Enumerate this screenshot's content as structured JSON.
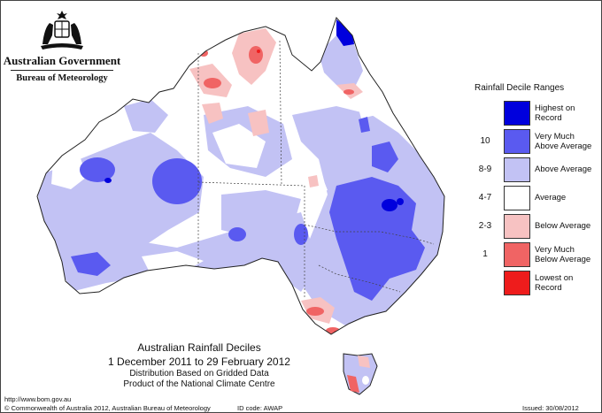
{
  "logo": {
    "government": "Australian Government",
    "bureau": "Bureau of Meteorology"
  },
  "legend": {
    "title": "Rainfall Decile Ranges",
    "items": [
      {
        "range": "",
        "line1": "Highest on",
        "line2": "Record",
        "color": "#0000dd"
      },
      {
        "range": "10",
        "line1": "Very Much",
        "line2": "Above Average",
        "color": "#5a5af0"
      },
      {
        "range": "8-9",
        "line1": "Above Average",
        "line2": "",
        "color": "#c2c2f4"
      },
      {
        "range": "4-7",
        "line1": "Average",
        "line2": "",
        "color": "#ffffff"
      },
      {
        "range": "2-3",
        "line1": "Below Average",
        "line2": "",
        "color": "#f7c2c2"
      },
      {
        "range": "1",
        "line1": "Very Much",
        "line2": "Below Average",
        "color": "#f06464"
      },
      {
        "range": "",
        "line1": "Lowest on",
        "line2": "Record",
        "color": "#ee1c1c"
      }
    ]
  },
  "title": {
    "main": "Australian Rainfall Deciles",
    "dates": "1 December 2011 to 29 February 2012",
    "sub1": "Distribution Based on Gridded Data",
    "sub2": "Product of the National Climate Centre"
  },
  "footer": {
    "url": "http://www.bom.gov.au",
    "copyright": "© Commonwealth of Australia 2012, Australian Bureau of Meteorology",
    "id_code": "ID code: AWAP",
    "issued": "Issued: 30/08/2012"
  }
}
